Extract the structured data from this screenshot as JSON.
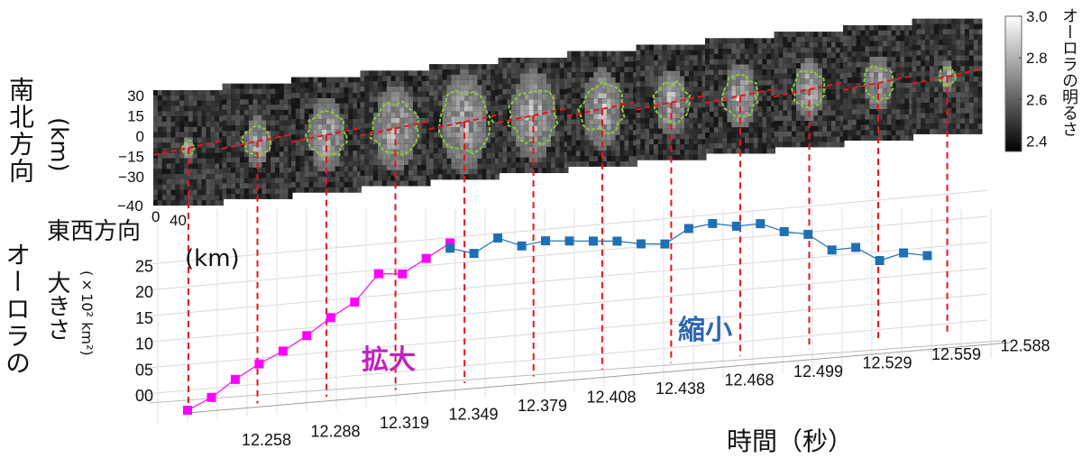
{
  "labels": {
    "ns_axis": "南北方向",
    "ns_unit": "(km)",
    "ew_axis": "東西方向",
    "ew_unit": "(km)",
    "size_axis": "オーロラの",
    "size_axis_2": "大きさ",
    "size_unit": "(×10² km²)",
    "time_axis": "時間（秒）",
    "colorbar_title": "オーロラの明るさ",
    "expand": "拡大",
    "shrink": "縮小"
  },
  "colors": {
    "expand": "#ff00ff",
    "shrink": "#1f6fb5",
    "expand_text": "#c21fc6",
    "shrink_text": "#2e67b3",
    "dropline": "#e8141b",
    "boundary": "#8cc63f"
  },
  "chart_data": [
    {
      "type": "heatmap",
      "description_panels": 12,
      "ns_ticks": [
        "30",
        "15",
        "0",
        "−15",
        "−30"
      ],
      "ew_ticks": [
        "−40",
        "0",
        "40"
      ],
      "colorbar_ticks": [
        "3.0",
        "2.8",
        "2.6",
        "2.4"
      ],
      "colorbar_range": [
        2.35,
        3.0
      ],
      "colormap": "gray",
      "panel_radius": [
        0.15,
        0.35,
        0.5,
        0.6,
        0.68,
        0.62,
        0.55,
        0.45,
        0.45,
        0.42,
        0.38,
        0.2
      ]
    },
    {
      "type": "line",
      "x_ticks": [
        "12.258",
        "12.288",
        "12.319",
        "12.349",
        "12.379",
        "12.408",
        "12.438",
        "12.468",
        "12.499",
        "12.529",
        "12.559",
        "12.588"
      ],
      "y_ticks": [
        "00",
        "05",
        "10",
        "15",
        "20",
        "25"
      ],
      "ylim": [
        0,
        27
      ],
      "series": [
        {
          "name": "拡大",
          "values": [
            0,
            2,
            5,
            7.5,
            9.5,
            12,
            15,
            17.5,
            22.5,
            22,
            24.5,
            27
          ]
        },
        {
          "name": "縮小",
          "values": [
            26,
            24.5,
            27,
            25,
            25.5,
            25,
            24.5,
            24,
            23,
            22.5,
            25,
            25.5,
            24.5,
            24.5,
            22.5,
            21.5,
            18,
            18,
            15,
            16,
            15
          ]
        }
      ]
    }
  ]
}
